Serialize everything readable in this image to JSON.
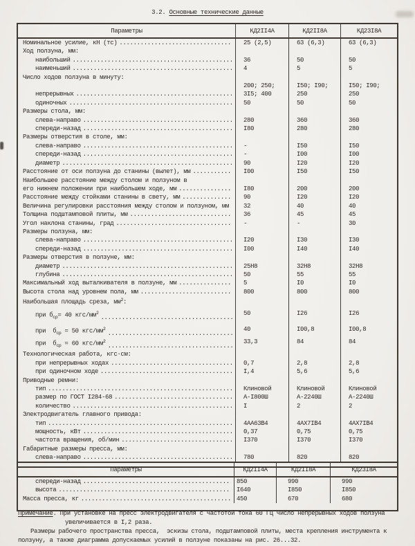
{
  "title": {
    "prefix": "3.2. ",
    "text": "Основные технические данные"
  },
  "table1": {
    "header": [
      "Параметры",
      "КД2II4А",
      "КД2II8А",
      "КД23I8А"
    ],
    "rows": [
      {
        "label": "Номинальное усилие, кН (тс)",
        "i": 0,
        "d": 1,
        "v": [
          "25 (2,5)",
          "63 (6,3)",
          "63 (6,3)"
        ]
      },
      {
        "label": "Ход ползуна, мм:",
        "i": 0
      },
      {
        "label": "наибольший",
        "i": 1,
        "d": 1,
        "v": [
          "36",
          "50",
          "50"
        ]
      },
      {
        "label": "наименьший",
        "i": 1,
        "d": 1,
        "v": [
          "4",
          "5",
          "5"
        ]
      },
      {
        "label": "Число ходов ползуна в минуту:",
        "i": 0
      },
      {
        "label": "непрерывных",
        "i": 1,
        "d": 1,
        "v": [
          "200; 250;\n3I5; 400",
          "I50; I90;\n250",
          "I50; I90;\n250"
        ]
      },
      {
        "label": "одиночных",
        "i": 1,
        "d": 1,
        "v": [
          "50",
          "50",
          "50"
        ]
      },
      {
        "label": "Размеры стола, мм:",
        "i": 0
      },
      {
        "label": "слева-направо",
        "i": 1,
        "d": 1,
        "v": [
          "280",
          "360",
          "360"
        ]
      },
      {
        "label": "спереди-назад",
        "i": 1,
        "d": 1,
        "v": [
          "I80",
          "280",
          "280"
        ]
      },
      {
        "label": "Размеры отверстия в столе, мм:",
        "i": 0
      },
      {
        "label": "слева-направо",
        "i": 1,
        "d": 1,
        "v": [
          "-",
          "I50",
          "I50"
        ]
      },
      {
        "label": "спереди-назад",
        "i": 1,
        "d": 1,
        "v": [
          "-",
          "I00",
          "I00"
        ]
      },
      {
        "label": "диаметр",
        "i": 1,
        "d": 1,
        "v": [
          "90",
          "I20",
          "I20"
        ]
      },
      {
        "label": "Расстояние от оси ползуна до станины (вылет), мм",
        "i": 0,
        "d": 1,
        "v": [
          "I00",
          "I50",
          "I50"
        ]
      },
      {
        "label": "Наибольшее расстояние между столом и ползуном в",
        "i": 0
      },
      {
        "label": "его нижнем положении при наибольшем ходе, мм",
        "i": 0,
        "d": 1,
        "v": [
          "I80",
          "200",
          "200"
        ]
      },
      {
        "label": "Расстояние между стойками станины в свету, мм",
        "i": 0,
        "d": 1,
        "v": [
          "90",
          "I20",
          "I20"
        ]
      },
      {
        "label": "Величина регулировки расстояния между столом и ползуном, мм",
        "i": 0,
        "d": 0,
        "v": [
          "32",
          "40",
          "40"
        ]
      },
      {
        "label": "Толщина подштамповой плиты, мм",
        "i": 0,
        "d": 1,
        "v": [
          "36",
          "45",
          "45"
        ]
      },
      {
        "label": "Угол наклона станины, град",
        "i": 0,
        "d": 1,
        "v": [
          "-",
          "-",
          "30"
        ]
      },
      {
        "label": "Размеры ползуна, мм:",
        "i": 0
      },
      {
        "label": "слева-направо",
        "i": 1,
        "d": 1,
        "v": [
          "I20",
          "I30",
          "I30"
        ]
      },
      {
        "label": "спереди-назад",
        "i": 1,
        "d": 1,
        "v": [
          "I00",
          "I40",
          "I40"
        ]
      },
      {
        "label": "Размеры отверстия в ползуне, мм:",
        "i": 0
      },
      {
        "label": "диаметр",
        "i": 1,
        "d": 1,
        "v": [
          "25Н8",
          "32Н8",
          "32Н8"
        ]
      },
      {
        "label": "глубина",
        "i": 1,
        "d": 1,
        "v": [
          "50",
          "55",
          "55"
        ]
      },
      {
        "label": "Максимальный ход выталкивателя в ползуне, мм",
        "i": 0,
        "d": 1,
        "v": [
          "5",
          "I0",
          "I0"
        ]
      },
      {
        "label": "Высота стола над уровнем пола, мм",
        "i": 0,
        "d": 1,
        "v": [
          "800",
          "800",
          "800"
        ]
      },
      {
        "parts": [
          {
            "t": "Наибольшая площадь среза, мм"
          },
          {
            "t": "2",
            "s": "sup"
          },
          {
            "t": ":"
          }
        ],
        "i": 0
      },
      {
        "parts": [
          {
            "t": "при б"
          },
          {
            "t": "ср",
            "s": "sub"
          },
          {
            "t": "= 40 кгс/мм"
          },
          {
            "t": "2",
            "s": "sup"
          }
        ],
        "i": 1,
        "d": 1,
        "v": [
          "50",
          "I26",
          "I26"
        ],
        "tall": 1
      },
      {
        "parts": [
          {
            "t": "при  б"
          },
          {
            "t": "ср",
            "s": "sub"
          },
          {
            "t": " = 50 кгс/мм"
          },
          {
            "t": "2",
            "s": "sup"
          }
        ],
        "i": 1,
        "d": 1,
        "v": [
          "40",
          "I00,8",
          "I00,8"
        ],
        "tall": 1
      },
      {
        "parts": [
          {
            "t": "при  б"
          },
          {
            "t": "ср",
            "s": "sub"
          },
          {
            "t": " = 60 кгс/мм"
          },
          {
            "t": "2",
            "s": "sup"
          }
        ],
        "i": 1,
        "d": 1,
        "v": [
          "33,3",
          "84",
          "84"
        ]
      },
      {
        "label": "Технологическая работа, кгс·см:",
        "i": 0
      },
      {
        "label": "при непрерывных ходах",
        "i": 1,
        "d": 1,
        "v": [
          "0,7",
          "2,8",
          "2,8"
        ]
      },
      {
        "label": "при одиночном ходе",
        "i": 1,
        "d": 1,
        "v": [
          "I,4",
          "5,6",
          "5,6"
        ]
      },
      {
        "label": "Приводные ремни:",
        "i": 0
      },
      {
        "label": "тип",
        "i": 1,
        "d": 1,
        "v": [
          "Клиновой",
          "Клиновой",
          "Клиновой"
        ]
      },
      {
        "label": "размер по ГОСТ I284-68",
        "i": 1,
        "d": 1,
        "v": [
          "А-I800Ш",
          "А-2240Ш",
          "А-2240Ш"
        ]
      },
      {
        "label": "количество",
        "i": 1,
        "d": 1,
        "v": [
          "I",
          "2",
          "2"
        ]
      },
      {
        "label": "Электродвигатель главного привода:",
        "i": 0
      },
      {
        "label": "тип",
        "i": 1,
        "d": 1,
        "v": [
          "4АА63В4",
          "4АХ7IВ4",
          "4АХ7IВ4"
        ]
      },
      {
        "label": "мощность, кВт",
        "i": 1,
        "d": 1,
        "v": [
          "0,37",
          "0,75",
          "0,75"
        ]
      },
      {
        "label": "частота вращения, об/мин",
        "i": 1,
        "d": 1,
        "v": [
          "I370",
          "I370",
          "I370"
        ]
      },
      {
        "label": "Габаритные размеры пресса, мм:",
        "i": 0
      },
      {
        "label": "слева-направо",
        "i": 1,
        "d": 1,
        "v": [
          "780",
          "820",
          "820"
        ]
      }
    ]
  },
  "table2": {
    "header": [
      "Параметры",
      "КД2II4А",
      "КД2II8А",
      "КД23I8А"
    ],
    "rows": [
      {
        "label": "спереди-назад",
        "i": 1,
        "d": 1,
        "v": [
          "850",
          "990",
          "990"
        ]
      },
      {
        "label": "высота",
        "i": 1,
        "d": 1,
        "v": [
          "I640",
          "I850",
          "I850"
        ]
      },
      {
        "label": "Масса пресса, кг",
        "i": 0,
        "d": 1,
        "v": [
          "450",
          "670",
          "680"
        ]
      }
    ]
  },
  "note": {
    "lines": [
      {
        "pad": 0,
        "parts": [
          {
            "t": "Примечание",
            "u": 1
          },
          {
            "t": ". При установке на пресс электродвигателя с частотой тока 60 Гц число непрерывных ходов ползуна"
          }
        ]
      },
      {
        "pad": 68,
        "parts": [
          {
            "t": "увеличивается в I,2 раза."
          }
        ]
      },
      {
        "pad": 18,
        "parts": [
          {
            "t": "Размеры рабочего пространства пресса,  эскизы стола, подштамповой плиты, места крепления инструмента к"
          }
        ]
      },
      {
        "pad": 0,
        "parts": [
          {
            "t": "ползуну, а также диаграмма допускаемых усилий в ползуне показаны на рис. 26...32."
          }
        ]
      }
    ]
  }
}
